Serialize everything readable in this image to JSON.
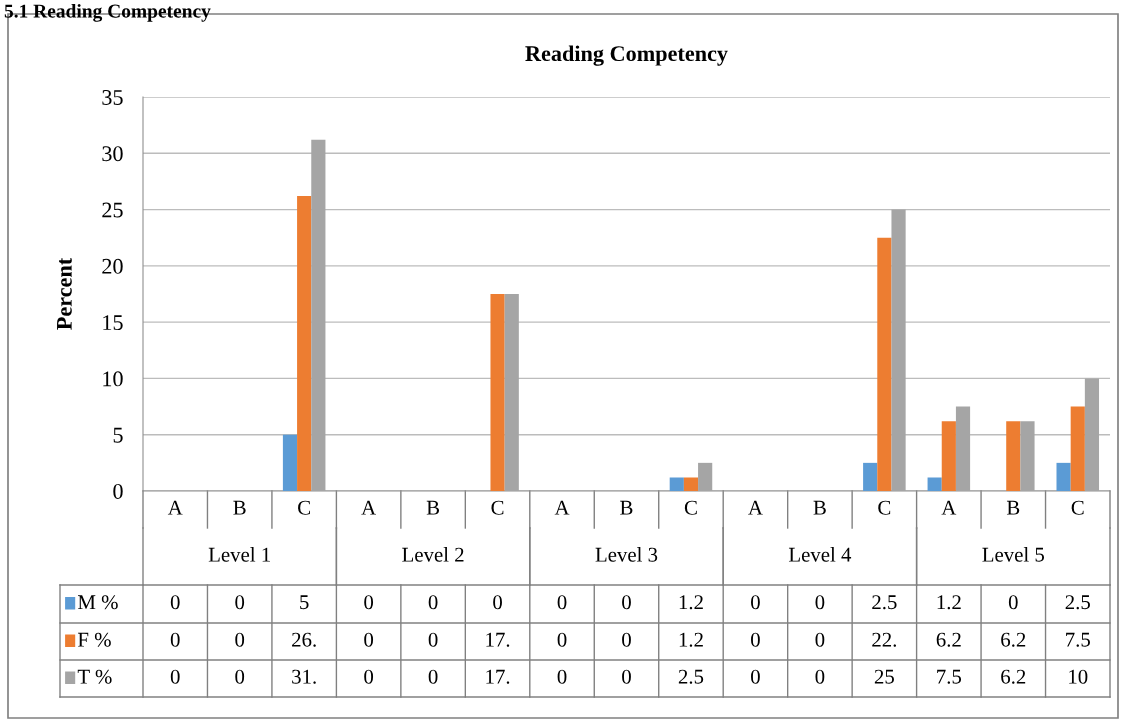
{
  "chart_data": {
    "type": "bar",
    "title": "Reading Competency",
    "ylabel": "Percent",
    "categories": [
      "A",
      "B",
      "C",
      "A",
      "B",
      "C",
      "A",
      "B",
      "C",
      "A",
      "B",
      "C",
      "A",
      "B",
      "C"
    ],
    "annotations": [
      "5.1 Reading Competency",
      "Level 1",
      "Level 2",
      "Level 3",
      "Level 4",
      "Level 5"
    ],
    "series": [
      {
        "name": "M %",
        "color": "#5b9bd5",
        "values": [
          0,
          0,
          5,
          0,
          0,
          0,
          0,
          0,
          1.2,
          0,
          0,
          2.5,
          1.2,
          0,
          2.5
        ],
        "value_labels": [
          "0",
          "0",
          "5",
          "0",
          "0",
          "0",
          "0",
          "0",
          "1.2",
          "0",
          "0",
          "2.5",
          "1.2",
          "0",
          "2.5"
        ]
      },
      {
        "name": "F %",
        "color": "#ed7d31",
        "values": [
          0,
          0,
          26.2,
          0,
          0,
          17.5,
          0,
          0,
          1.2,
          0,
          0,
          22.5,
          6.2,
          6.2,
          7.5
        ],
        "value_labels": [
          "0",
          "0",
          "26.",
          "0",
          "0",
          "17.",
          "0",
          "0",
          "1.2",
          "0",
          "0",
          "22.",
          "6.2",
          "6.2",
          "7.5"
        ]
      },
      {
        "name": "T %",
        "color": "#a5a5a5",
        "values": [
          0,
          0,
          31.2,
          0,
          0,
          17.5,
          0,
          0,
          2.5,
          0,
          0,
          25,
          7.5,
          6.2,
          10
        ],
        "value_labels": [
          "0",
          "0",
          "31.",
          "0",
          "0",
          "17.",
          "0",
          "0",
          "2.5",
          "0",
          "0",
          "25",
          "7.5",
          "6.2",
          "10"
        ]
      }
    ],
    "ylim": [
      0,
      35
    ],
    "yticks": [
      0,
      5,
      10,
      15,
      20,
      25,
      30,
      35
    ],
    "grid": "y",
    "legend": "bottom"
  }
}
